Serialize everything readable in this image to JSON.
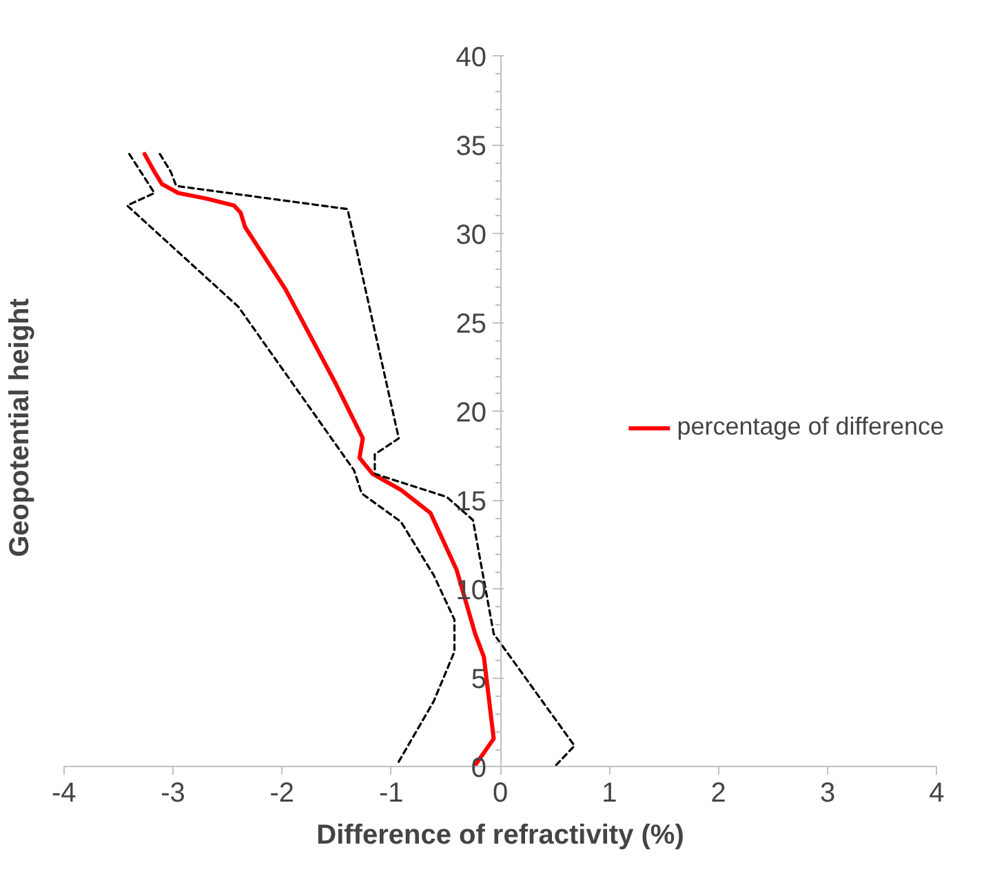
{
  "chart_data": {
    "type": "line",
    "xlabel": "Difference of refractivity (%)",
    "ylabel": "Geopotential height",
    "xlim": [
      -4,
      4
    ],
    "xticks": [
      -4,
      -3,
      -2,
      -1,
      0,
      1,
      2,
      3,
      4
    ],
    "ylim": [
      0,
      40
    ],
    "yticks": [
      0,
      5,
      10,
      15,
      20,
      25,
      30,
      35,
      40
    ],
    "grid": false,
    "legend": "right",
    "marker": "none",
    "series": [
      {
        "name": "percentage of difference",
        "color": "#ff0000",
        "line_style": "solid",
        "x": [
          -3.26,
          -3.17,
          -3.1,
          -2.95,
          -2.7,
          -2.44,
          -2.38,
          -2.34,
          -1.97,
          -1.51,
          -1.26,
          -1.29,
          -1.17,
          -0.91,
          -0.64,
          -0.4,
          -0.23,
          -0.15,
          -0.06,
          -0.23
        ],
        "values": [
          34.5,
          33.5,
          32.8,
          32.3,
          32.0,
          31.6,
          31.2,
          30.4,
          26.9,
          21.6,
          18.5,
          17.4,
          16.5,
          15.6,
          14.3,
          11.1,
          7.5,
          6.2,
          1.6,
          0.1
        ]
      },
      {
        "color": "#000000",
        "line_style": "dashed",
        "x": [
          -3.4,
          -3.17,
          -3.42,
          -2.4,
          -1.34,
          -1.27,
          -0.91,
          -0.61,
          -0.42,
          -0.42,
          -0.61,
          -0.95
        ],
        "values": [
          34.5,
          32.3,
          31.6,
          25.9,
          16.7,
          15.4,
          13.8,
          10.8,
          8.3,
          6.5,
          3.7,
          0.1
        ]
      },
      {
        "color": "#000000",
        "line_style": "dashed",
        "x": [
          -3.12,
          -3.02,
          -2.97,
          -1.4,
          -0.93,
          -1.15,
          -1.15,
          -0.49,
          -0.25,
          -0.06,
          0.68,
          0.51
        ],
        "values": [
          34.5,
          33.5,
          32.7,
          31.4,
          18.5,
          17.6,
          16.5,
          15.2,
          13.9,
          7.5,
          1.2,
          0.1
        ]
      }
    ]
  }
}
